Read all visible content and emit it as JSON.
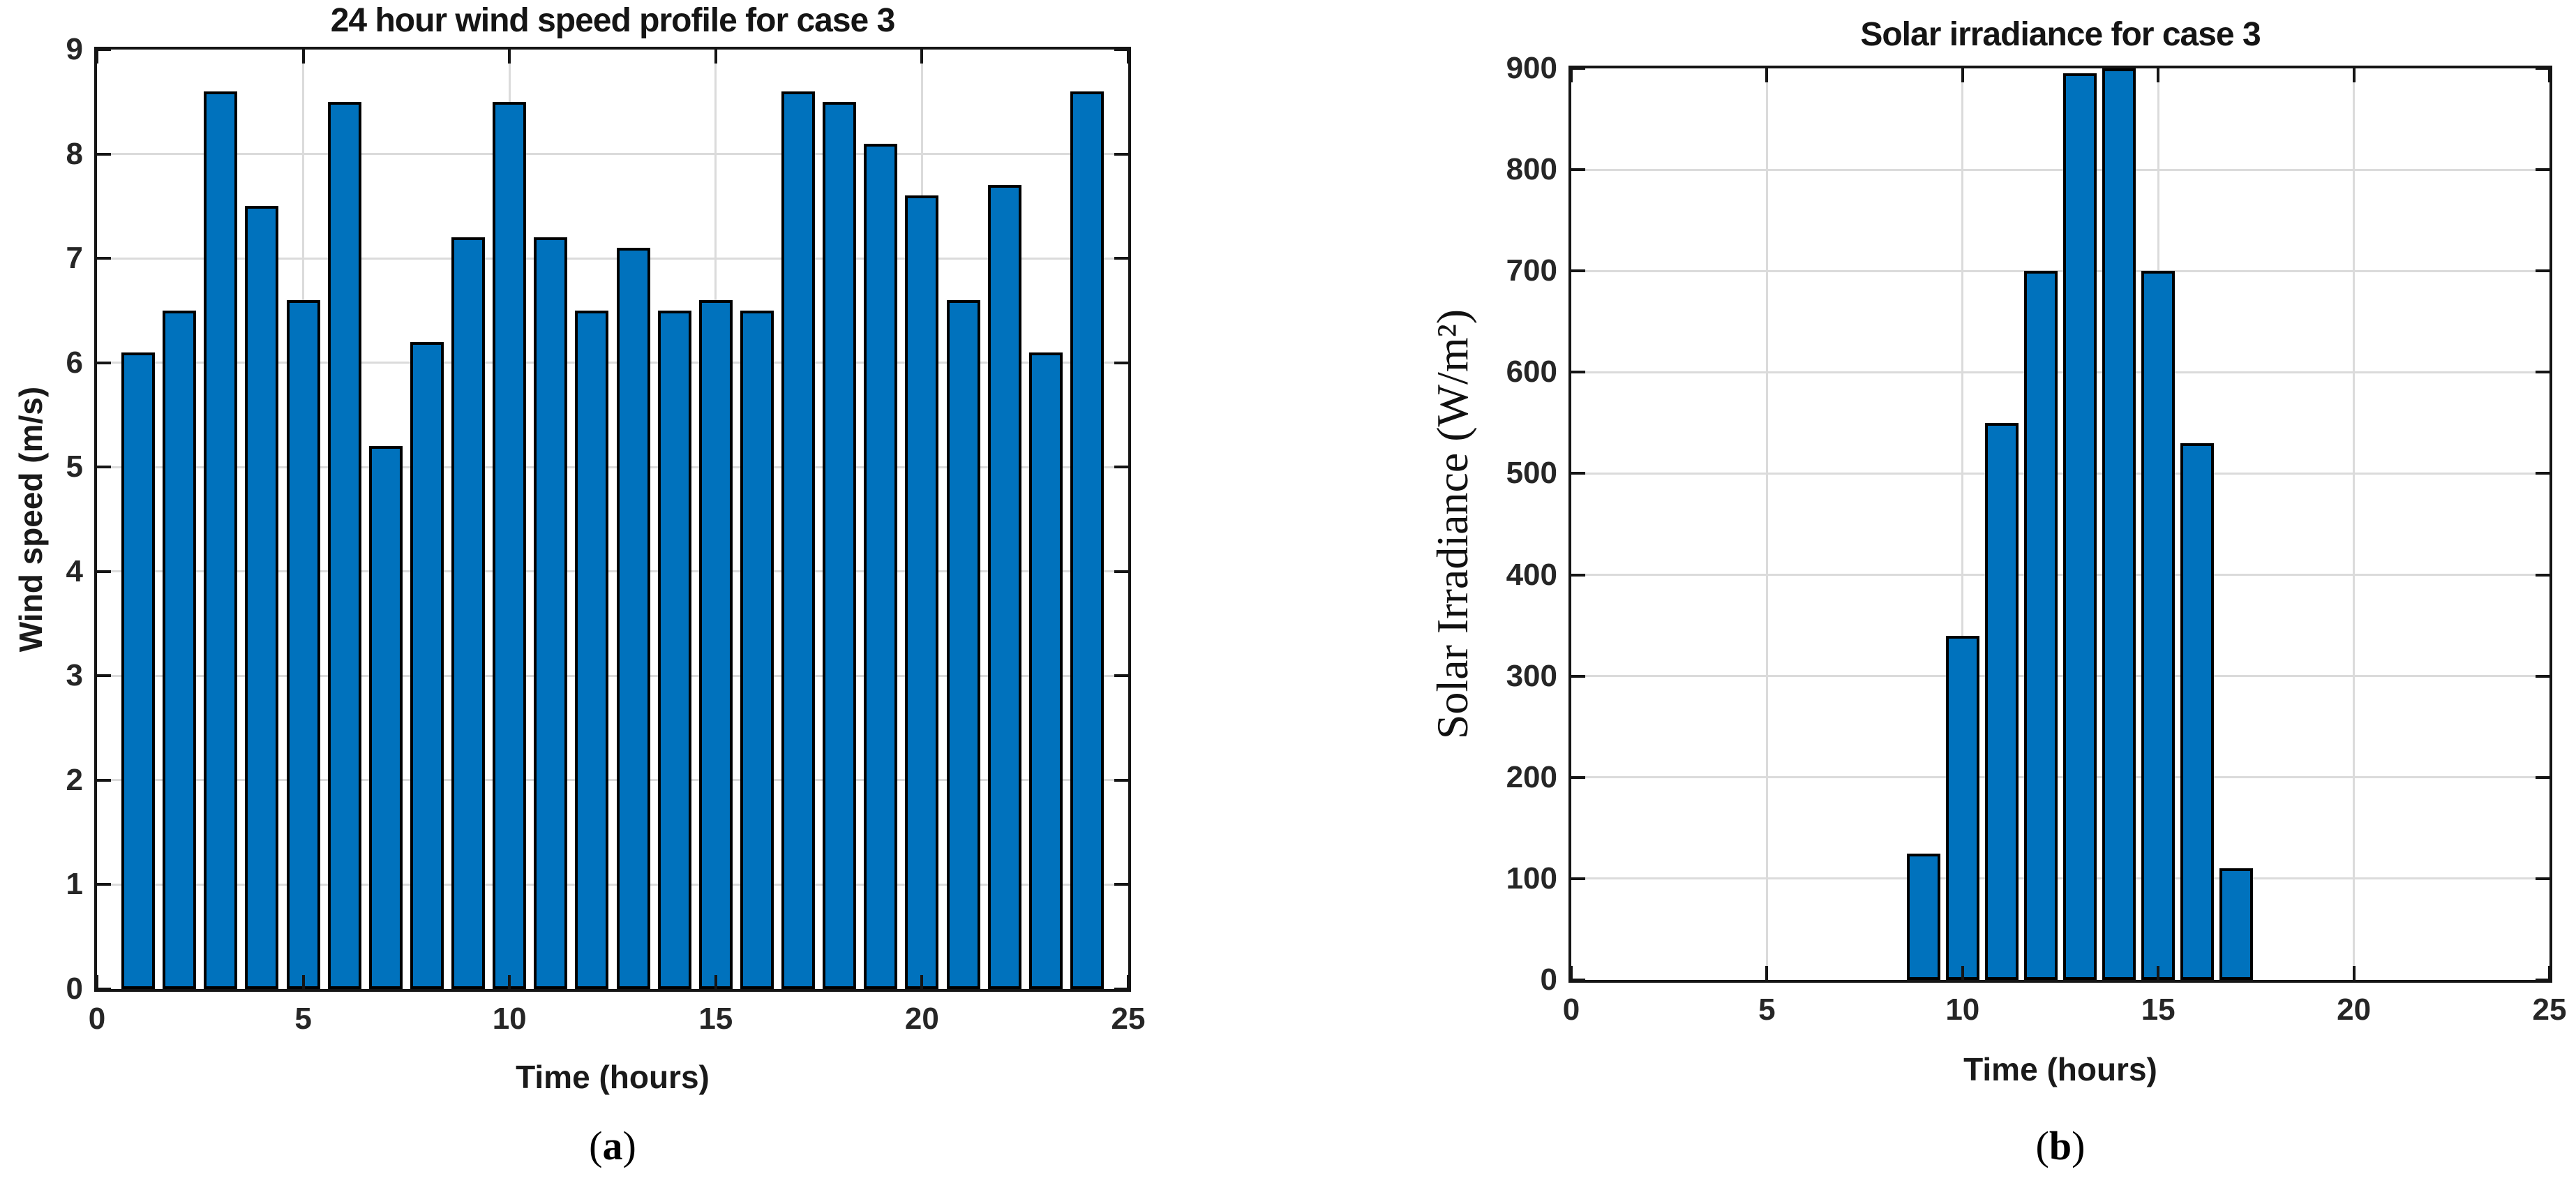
{
  "figure": {
    "background": "#FFFFFF",
    "panels": [
      {
        "caption": {
          "open": "(",
          "letter": "a",
          "close": ")"
        }
      },
      {
        "caption": {
          "open": "(",
          "letter": "b",
          "close": ")"
        }
      }
    ]
  },
  "chart_data": [
    {
      "type": "bar",
      "title": "24 hour wind speed profile for case 3",
      "xlabel": "Time (hours)",
      "ylabel": "Wind speed (m/s)",
      "x": [
        1,
        2,
        3,
        4,
        5,
        6,
        7,
        8,
        9,
        10,
        11,
        12,
        13,
        14,
        15,
        16,
        17,
        18,
        19,
        20,
        21,
        22,
        23,
        24
      ],
      "values": [
        6.1,
        6.5,
        8.6,
        7.5,
        6.6,
        8.5,
        5.2,
        6.2,
        7.2,
        8.5,
        7.2,
        6.5,
        7.1,
        6.5,
        6.6,
        6.5,
        8.6,
        8.5,
        8.1,
        7.6,
        6.6,
        7.7,
        6.1,
        8.6
      ],
      "xlim": [
        0,
        25
      ],
      "ylim": [
        0,
        9
      ],
      "xticks": [
        0,
        5,
        10,
        15,
        20,
        25
      ],
      "yticks": [
        0,
        1,
        2,
        3,
        4,
        5,
        6,
        7,
        8,
        9
      ],
      "grid": true,
      "legend": "none",
      "bar_color": "#0072BD",
      "bar_edge_color": "#000000"
    },
    {
      "type": "bar",
      "title": "Solar irradiance for case 3",
      "xlabel": "Time (hours)",
      "ylabel": "Solar Irradiance (W/m²)",
      "x": [
        9,
        10,
        11,
        12,
        13,
        14,
        15,
        16,
        17
      ],
      "values": [
        125,
        340,
        550,
        700,
        895,
        900,
        700,
        530,
        110
      ],
      "xlim": [
        0,
        25
      ],
      "ylim": [
        0,
        900
      ],
      "xticks": [
        0,
        5,
        10,
        15,
        20,
        25
      ],
      "yticks": [
        0,
        100,
        200,
        300,
        400,
        500,
        600,
        700,
        800,
        900
      ],
      "grid": true,
      "legend": "none",
      "bar_color": "#0072BD",
      "bar_edge_color": "#000000"
    }
  ],
  "colors": {
    "bar_fill": "#0072BD",
    "bar_edge": "#000000",
    "gridline": "#DBDBDB",
    "axis": "#151515",
    "text": "#1A1A1A"
  }
}
